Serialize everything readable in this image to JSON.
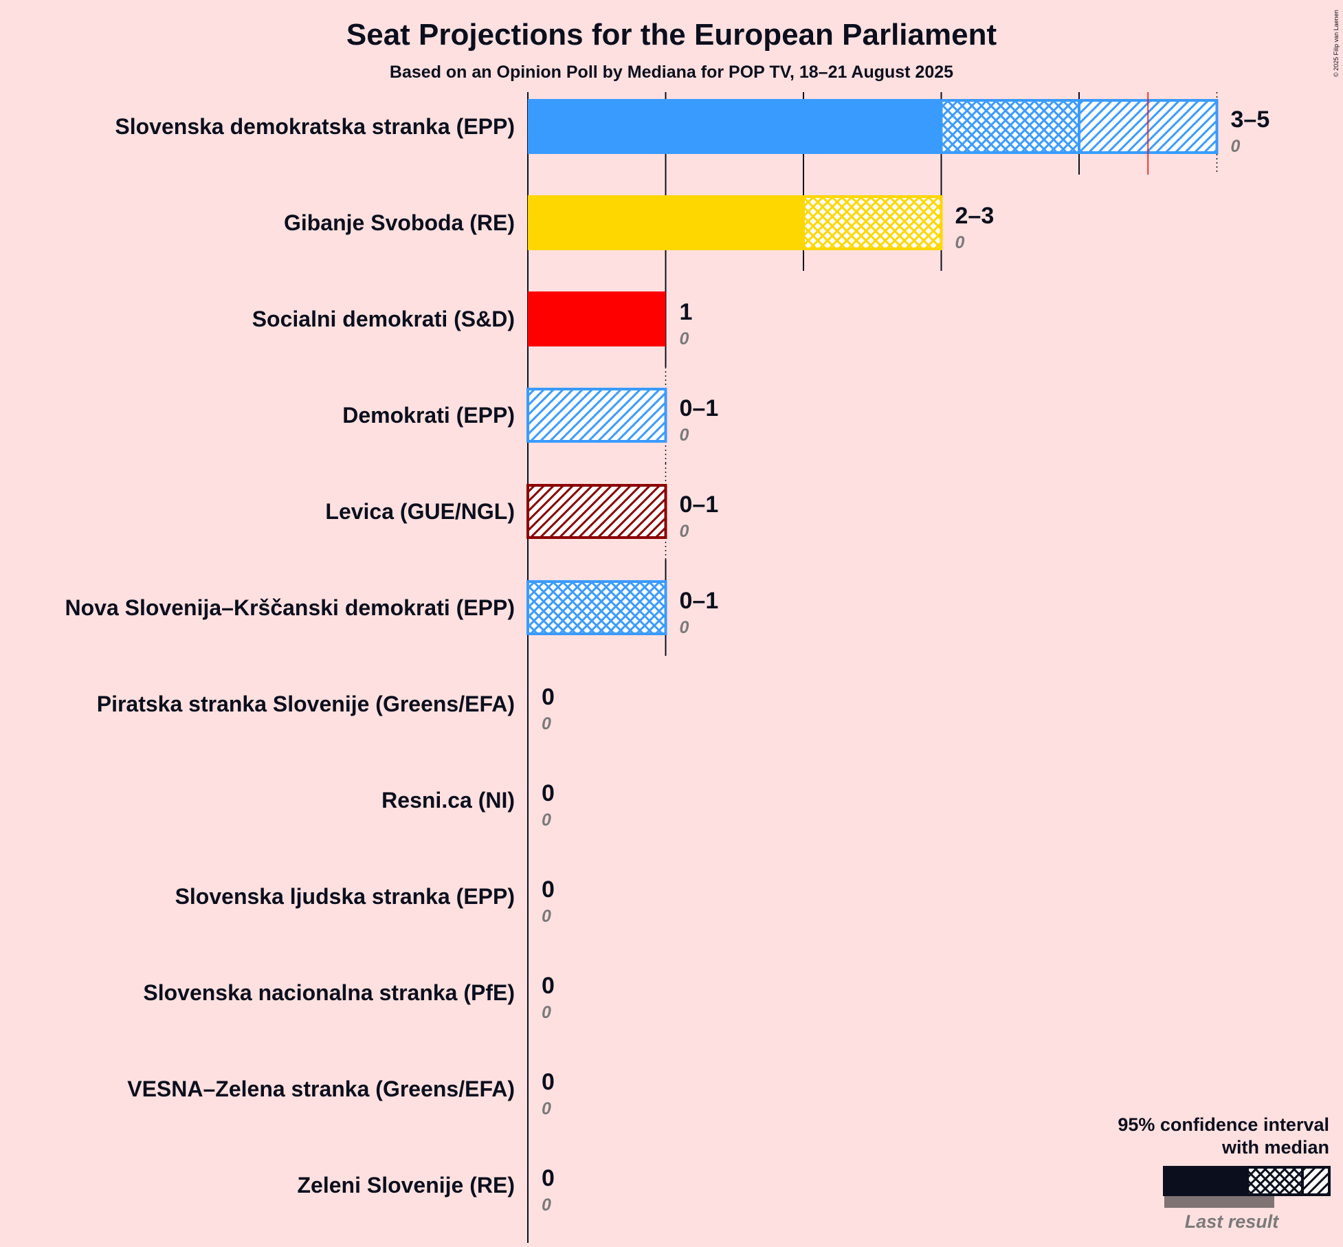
{
  "title": "Seat Projections for the European Parliament",
  "subtitle": "Based on an Opinion Poll by Mediana for POP TV, 18–21 August 2025",
  "copyright": "© 2025 Filip van Laenen",
  "legend": {
    "line1": "95% confidence interval",
    "line2": "with median",
    "last_result": "Last result"
  },
  "chart_data": {
    "type": "bar",
    "orientation": "horizontal",
    "xlim": [
      0,
      5
    ],
    "xlabel": "",
    "ylabel": "",
    "majority_marker": 4.5,
    "parties": [
      {
        "name": "Slovenska demokratska stranka (EPP)",
        "solid": 3,
        "ci_low": 3,
        "median": 4,
        "ci_high": 5,
        "range_label": "3–5",
        "last_result": "0",
        "color": "#3A9BFF"
      },
      {
        "name": "Gibanje Svoboda (RE)",
        "solid": 2,
        "ci_low": 2,
        "median": 3,
        "ci_high": 3,
        "range_label": "2–3",
        "last_result": "0",
        "color": "#FFD700"
      },
      {
        "name": "Socialni demokrati (S&D)",
        "solid": 1,
        "ci_low": 1,
        "median": 1,
        "ci_high": 1,
        "range_label": "1",
        "last_result": "0",
        "color": "#FF0000"
      },
      {
        "name": "Demokrati (EPP)",
        "solid": 0,
        "ci_low": 0,
        "median": 0,
        "ci_high": 1,
        "range_label": "0–1",
        "last_result": "0",
        "color": "#3A9BFF"
      },
      {
        "name": "Levica (GUE/NGL)",
        "solid": 0,
        "ci_low": 0,
        "median": 0,
        "ci_high": 1,
        "range_label": "0–1",
        "last_result": "0",
        "color": "#8B0000"
      },
      {
        "name": "Nova Slovenija–Krščanski demokrati (EPP)",
        "solid": 0,
        "ci_low": 0,
        "median": 1,
        "ci_high": 1,
        "range_label": "0–1",
        "last_result": "0",
        "color": "#3A9BFF"
      },
      {
        "name": "Piratska stranka Slovenije (Greens/EFA)",
        "solid": 0,
        "ci_low": 0,
        "median": 0,
        "ci_high": 0,
        "range_label": "0",
        "last_result": "0",
        "color": "#000000"
      },
      {
        "name": "Resni.ca (NI)",
        "solid": 0,
        "ci_low": 0,
        "median": 0,
        "ci_high": 0,
        "range_label": "0",
        "last_result": "0",
        "color": "#000000"
      },
      {
        "name": "Slovenska ljudska stranka (EPP)",
        "solid": 0,
        "ci_low": 0,
        "median": 0,
        "ci_high": 0,
        "range_label": "0",
        "last_result": "0",
        "color": "#000000"
      },
      {
        "name": "Slovenska nacionalna stranka (PfE)",
        "solid": 0,
        "ci_low": 0,
        "median": 0,
        "ci_high": 0,
        "range_label": "0",
        "last_result": "0",
        "color": "#000000"
      },
      {
        "name": "VESNA–Zelena stranka (Greens/EFA)",
        "solid": 0,
        "ci_low": 0,
        "median": 0,
        "ci_high": 0,
        "range_label": "0",
        "last_result": "0",
        "color": "#000000"
      },
      {
        "name": "Zeleni Slovenije (RE)",
        "solid": 0,
        "ci_low": 0,
        "median": 0,
        "ci_high": 0,
        "range_label": "0",
        "last_result": "0",
        "color": "#000000"
      }
    ]
  }
}
